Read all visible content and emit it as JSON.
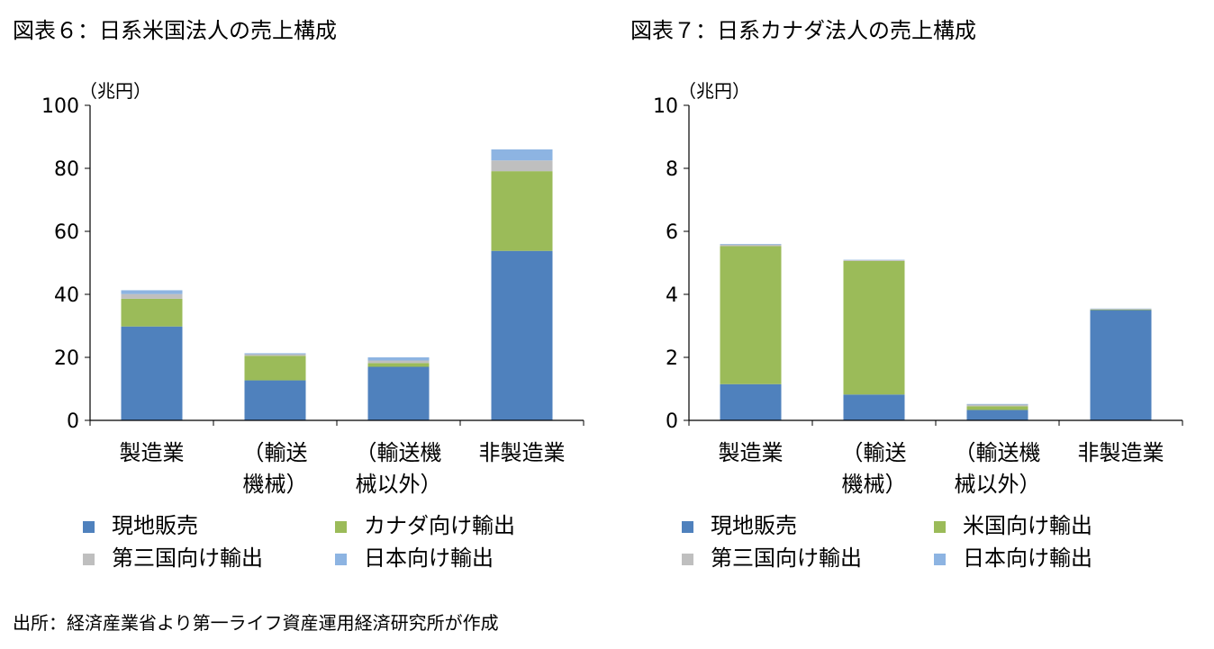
{
  "chart_data": [
    {
      "type": "bar",
      "stacked": true,
      "title": "図表６：日系米国法人の売上構成",
      "ylabel": "（兆円）",
      "ylim": [
        0,
        100
      ],
      "yticks": [
        0,
        20,
        40,
        60,
        80,
        100
      ],
      "categories": [
        [
          "製造業"
        ],
        [
          "（輸送",
          "機械）"
        ],
        [
          "（輸送機",
          "械以外）"
        ],
        [
          "非製造業"
        ]
      ],
      "series": [
        {
          "name": "現地販売",
          "color": "#4F81BD",
          "values": [
            29.8,
            12.7,
            17.0,
            53.8
          ]
        },
        {
          "name": "カナダ向け輸出",
          "color": "#9BBB59",
          "values": [
            8.8,
            7.8,
            1.2,
            25.3
          ]
        },
        {
          "name": "第三国向け輸出",
          "color": "#BFBFBF",
          "values": [
            1.5,
            0.5,
            0.8,
            3.4
          ]
        },
        {
          "name": "日本向け輸出",
          "color": "#8DB4E2",
          "values": [
            1.2,
            0.3,
            1.0,
            3.5
          ]
        }
      ],
      "legend": "bottom"
    },
    {
      "type": "bar",
      "stacked": true,
      "title": "図表７：日系カナダ法人の売上構成",
      "ylabel": "（兆円）",
      "ylim": [
        0,
        10
      ],
      "yticks": [
        0,
        2,
        4,
        6,
        8,
        10
      ],
      "categories": [
        [
          "製造業"
        ],
        [
          "（輸送",
          "機械）"
        ],
        [
          "（輸送機",
          "械以外）"
        ],
        [
          "非製造業"
        ]
      ],
      "series": [
        {
          "name": "現地販売",
          "color": "#4F81BD",
          "values": [
            1.15,
            0.82,
            0.33,
            3.5
          ]
        },
        {
          "name": "米国向け輸出",
          "color": "#9BBB59",
          "values": [
            4.38,
            4.24,
            0.12,
            0.02
          ]
        },
        {
          "name": "第三国向け輸出",
          "color": "#BFBFBF",
          "values": [
            0.05,
            0.03,
            0.05,
            0.02
          ]
        },
        {
          "name": "日本向け輸出",
          "color": "#8DB4E2",
          "values": [
            0.02,
            0.01,
            0.02,
            0.01
          ]
        }
      ],
      "legend": "bottom"
    }
  ],
  "footer": {
    "source": "出所：経済産業省より第一ライフ資産運用経済研究所が作成"
  }
}
